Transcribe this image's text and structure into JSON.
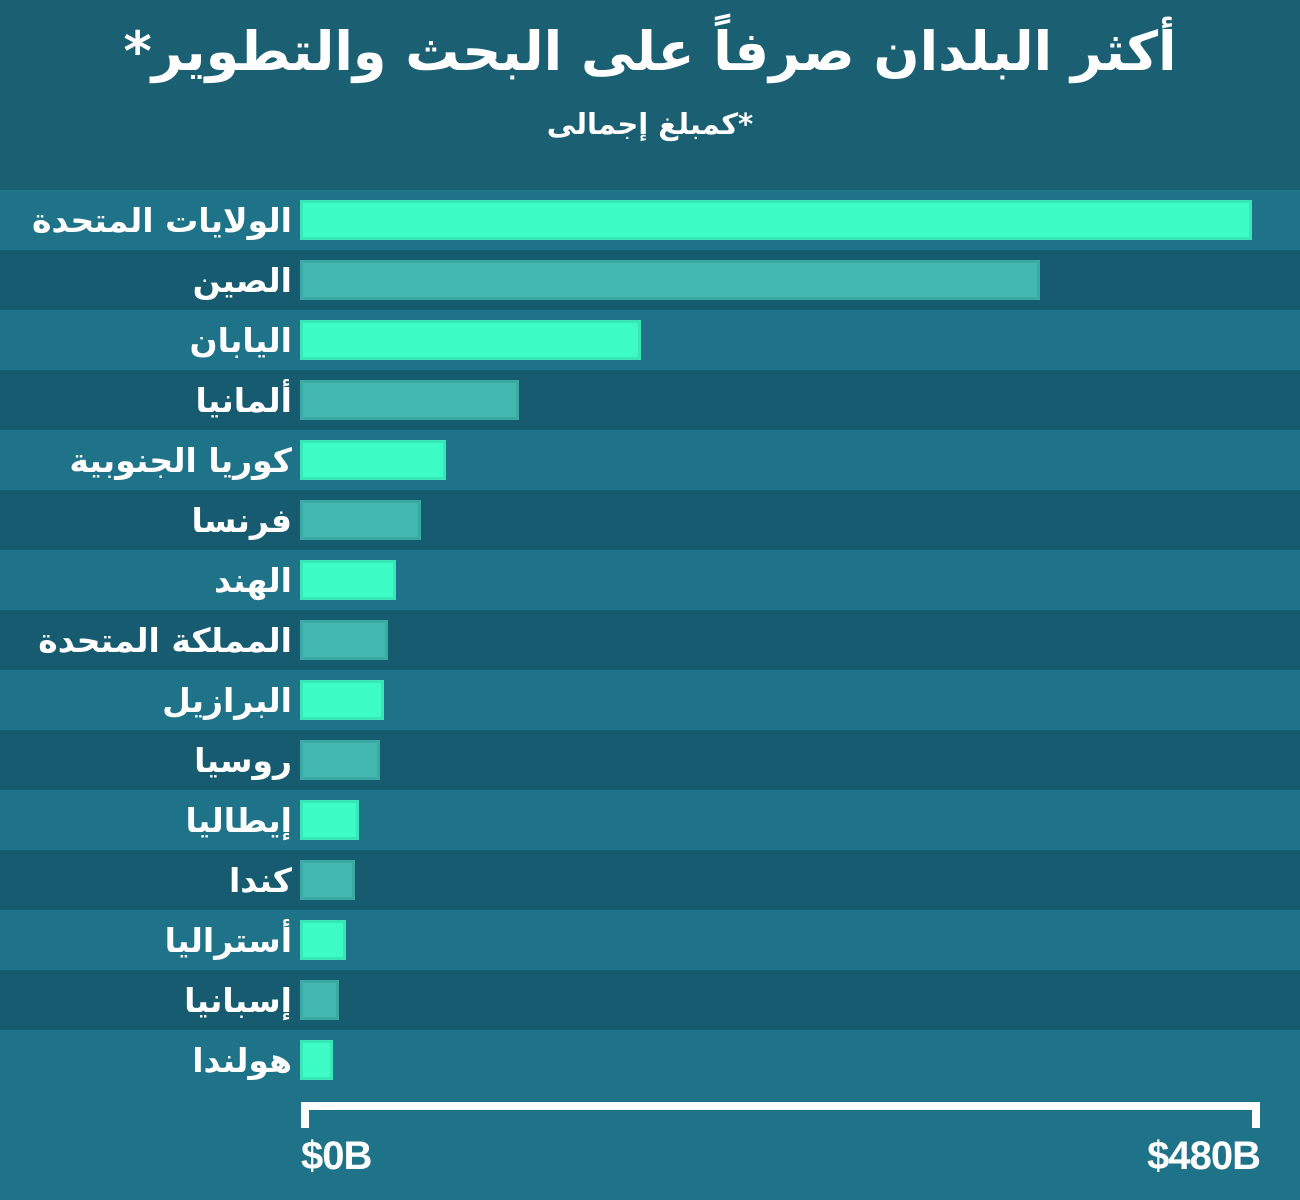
{
  "header": {
    "title": "أكثر البلدان صرفاً على البحث والتطوير*",
    "subtitle": "*كمبلغ إجمالى"
  },
  "axis": {
    "start_label": "$0B",
    "end_label": "$480B"
  },
  "colors": {
    "header_bg": "#1B5F73",
    "row_light": "#1F7389",
    "row_dark": "#165B70",
    "bar_bright": "#3DFBC5",
    "bar_teal": "#42B7AF",
    "text": "#FFFFFF"
  },
  "chart_data": {
    "type": "bar",
    "orientation": "horizontal",
    "title": "أكثر البلدان صرفاً على البحث والتطوير*",
    "subtitle": "*كمبلغ إجمالى",
    "categories": [
      "الولايات المتحدة",
      "الصين",
      "اليابان",
      "ألمانيا",
      "كوريا الجنوبية",
      "فرنسا",
      "الهند",
      "المملكة المتحدة",
      "البرازيل",
      "روسيا",
      "إيطاليا",
      "كندا",
      "أستراليا",
      "إسبانيا",
      "هولندا"
    ],
    "values": [
      476.5,
      370.6,
      170.5,
      109.8,
      73.2,
      60.8,
      48.1,
      44.2,
      42.1,
      39.8,
      29.6,
      27.6,
      23.1,
      19.3,
      16.5
    ],
    "value_unit": "billion USD",
    "xlim": [
      0,
      480
    ],
    "x_tick_labels": [
      "$0B",
      "$480B"
    ],
    "grid": false,
    "legend": "none",
    "sorted": "descending",
    "bar_color_pattern": [
      "#3DFBC5",
      "#42B7AF"
    ],
    "row_stripe_pattern": [
      "#1F7389",
      "#165B70"
    ]
  }
}
